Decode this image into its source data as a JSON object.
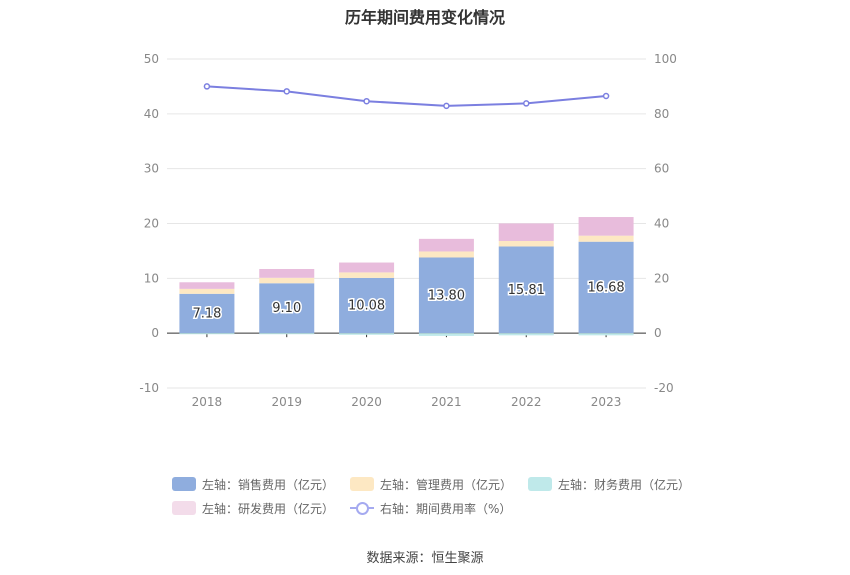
{
  "chart_data": {
    "type": "bar",
    "title": "历年期间费用变化情况",
    "categories": [
      "2018",
      "2019",
      "2020",
      "2021",
      "2022",
      "2023"
    ],
    "stacked": true,
    "left_axis": {
      "ylim": [
        -10,
        50
      ],
      "ticks": [
        "-10",
        "0",
        "10",
        "20",
        "30",
        "40",
        "50"
      ]
    },
    "right_axis": {
      "ylim": [
        -20,
        100
      ],
      "ticks": [
        "-20",
        "0",
        "20",
        "40",
        "60",
        "80",
        "100"
      ]
    },
    "grid": true,
    "legend_position": "bottom",
    "series": [
      {
        "name": "左轴：销售费用（亿元）",
        "type": "bar",
        "axis": "left",
        "color": "#8fadde",
        "values": [
          7.18,
          9.1,
          10.08,
          13.8,
          15.81,
          16.68
        ],
        "labels": [
          "7.18",
          "9.10",
          "10.08",
          "13.80",
          "15.81",
          "16.68"
        ]
      },
      {
        "name": "左轴：管理费用（亿元）",
        "type": "bar",
        "axis": "left",
        "color": "#fde8c3",
        "values": [
          0.9,
          1.0,
          1.0,
          1.1,
          1.0,
          1.1
        ]
      },
      {
        "name": "左轴：财务费用（亿元）",
        "type": "bar",
        "axis": "left",
        "color": "#bfe9ea",
        "values": [
          -0.2,
          -0.2,
          -0.3,
          -0.5,
          -0.4,
          -0.4
        ]
      },
      {
        "name": "左轴：研发费用（亿元）",
        "type": "bar",
        "axis": "left",
        "color": "#e8bcdc",
        "values": [
          1.2,
          1.6,
          1.8,
          2.3,
          3.2,
          3.4
        ]
      },
      {
        "name": "右轴：期间费用率（%）",
        "type": "line",
        "axis": "right",
        "color": "#7b7fe0",
        "values": [
          90.0,
          88.2,
          84.6,
          82.9,
          83.8,
          86.5
        ]
      }
    ]
  },
  "source": "数据来源：恒生聚源"
}
